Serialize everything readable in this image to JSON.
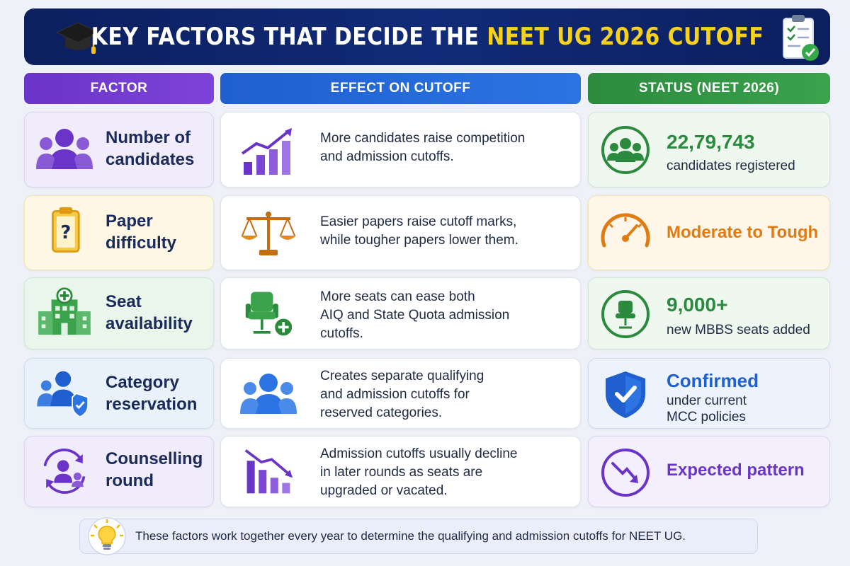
{
  "banner": {
    "title_main": "KEY FACTORS THAT DECIDE THE ",
    "title_highlight": "NEET UG 2026 CUTOFF",
    "highlight_color": "#f7d21c"
  },
  "columns": {
    "factor": "FACTOR",
    "effect": "EFFECT ON CUTOFF",
    "status": "STATUS (NEET 2026)"
  },
  "rows": [
    {
      "factor": [
        "Number of",
        "candidates"
      ],
      "factor_icon": "people-group-icon",
      "effect": [
        "More candidates raise competition",
        "and admission cutoffs."
      ],
      "effect_icon": "rising-bar-chart-icon",
      "status_big": "22,79,743",
      "status_small": [
        "candidates registered"
      ],
      "status_icon": "people-circle-icon",
      "status_color": "#2b8a3e"
    },
    {
      "factor": [
        "Paper",
        "difficulty"
      ],
      "factor_icon": "question-clipboard-icon",
      "effect": [
        "Easier papers raise cutoff marks,",
        "while tougher papers lower them."
      ],
      "effect_icon": "balance-scale-icon",
      "status_big": "Moderate to Tough",
      "status_small": [],
      "status_icon": "gauge-icon",
      "status_color": "#e07b12"
    },
    {
      "factor": [
        "Seat",
        "availability"
      ],
      "factor_icon": "hospital-icon",
      "effect": [
        "More seats can ease both",
        "AIQ and State Quota admission",
        "cutoffs."
      ],
      "effect_icon": "chair-plus-icon",
      "status_big": "9,000+",
      "status_small": [
        "new MBBS seats added"
      ],
      "status_icon": "chair-circle-icon",
      "status_color": "#2b8a3e"
    },
    {
      "factor": [
        "Category",
        "reservation"
      ],
      "factor_icon": "people-shield-icon",
      "effect": [
        "Creates separate qualifying",
        "and admission cutoffs for",
        "reserved categories."
      ],
      "effect_icon": "people-group-blue-icon",
      "status_big": "Confirmed",
      "status_small": [
        "under current",
        "MCC policies"
      ],
      "status_icon": "shield-check-icon",
      "status_color": "#1f5fcf"
    },
    {
      "factor": [
        "Counselling",
        "round"
      ],
      "factor_icon": "person-cycle-icon",
      "effect": [
        "Admission cutoffs usually decline",
        "in later rounds as seats are",
        "upgraded or vacated."
      ],
      "effect_icon": "declining-bar-chart-icon",
      "status_big": "Expected pattern",
      "status_small": [],
      "status_icon": "down-arrow-circle-icon",
      "status_color": "#6a34c9"
    }
  ],
  "footer": {
    "text": "These factors work together every year to determine the qualifying and admission cutoffs for NEET UG.",
    "icon": "lightbulb-icon"
  }
}
